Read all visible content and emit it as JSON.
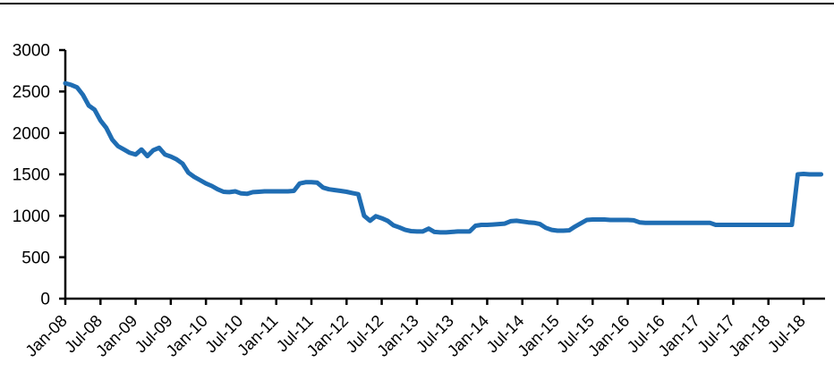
{
  "page": {
    "background_color": "#ffffff",
    "top_divider_color": "#000000"
  },
  "chart_data": {
    "type": "line",
    "title": "",
    "xlabel": "",
    "ylabel": "",
    "legend": false,
    "grid": false,
    "axis_color": "#000000",
    "tick_label_color": "#000000",
    "ylim": [
      0,
      3000
    ],
    "y_ticks": [
      0,
      500,
      1000,
      1500,
      2000,
      2500,
      3000
    ],
    "x_tick_labels": [
      "Jan-08",
      "Jul-08",
      "Jan-09",
      "Jul-09",
      "Jan-10",
      "Jul-10",
      "Jan-11",
      "Jul-11",
      "Jan-12",
      "Jul-12",
      "Jan-13",
      "Jul-13",
      "Jan-14",
      "Jul-14",
      "Jan-15",
      "Jul-15",
      "Jan-16",
      "Jul-16",
      "Jan-17",
      "Jul-17",
      "Jan-18",
      "Jul-18"
    ],
    "x_tick_interval_months": 6,
    "x_start": "Jan-08",
    "x_end": "Oct-18",
    "x_frequency": "monthly",
    "series": [
      {
        "name": "series-1",
        "color": "#1f6db3",
        "line_width": 5,
        "values": [
          2600,
          2580,
          2550,
          2460,
          2330,
          2280,
          2150,
          2060,
          1920,
          1840,
          1800,
          1760,
          1740,
          1800,
          1720,
          1790,
          1820,
          1740,
          1715,
          1680,
          1630,
          1520,
          1470,
          1430,
          1390,
          1360,
          1320,
          1290,
          1285,
          1295,
          1270,
          1265,
          1285,
          1290,
          1295,
          1295,
          1295,
          1295,
          1295,
          1300,
          1390,
          1405,
          1405,
          1400,
          1340,
          1320,
          1310,
          1300,
          1290,
          1275,
          1260,
          1000,
          940,
          995,
          970,
          940,
          885,
          860,
          830,
          815,
          810,
          810,
          845,
          805,
          800,
          800,
          805,
          810,
          810,
          810,
          880,
          890,
          890,
          895,
          900,
          905,
          935,
          940,
          930,
          920,
          915,
          900,
          855,
          830,
          820,
          820,
          825,
          870,
          910,
          950,
          955,
          955,
          955,
          950,
          950,
          950,
          950,
          945,
          920,
          915,
          915,
          915,
          915,
          915,
          915,
          915,
          915,
          915,
          915,
          915,
          915,
          890,
          890,
          890,
          890,
          890,
          890,
          890,
          890,
          890,
          890,
          890,
          890,
          890,
          890,
          1500,
          1505,
          1500,
          1500,
          1500
        ]
      }
    ]
  }
}
